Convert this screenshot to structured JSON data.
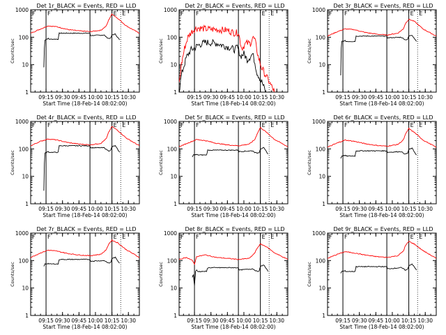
{
  "figure": {
    "xlabel": "Start Time (18-Feb-14 08:02:00)",
    "ylabel": "Counts/sec",
    "x_tick_labels": [
      "09:15",
      "09:30",
      "09:45",
      "10:00",
      "10:15",
      "10:30"
    ],
    "y_tick_labels": [
      "1",
      "10",
      "100",
      "1000"
    ],
    "marker_labels": [
      "F",
      "E"
    ],
    "colors": {
      "events": "#000000",
      "lld": "#ff0000",
      "frame": "#000000"
    }
  },
  "chart_data": [
    {
      "type": "line",
      "title": "Det 1r_BLACK = Events, RED = LLD",
      "xlabel": "Start Time (18-Feb-14 08:02:00)",
      "ylabel": "Counts/sec",
      "x_range": [
        "09:01",
        "10:40"
      ],
      "y_scale": "log",
      "ylim": [
        1,
        1000
      ],
      "vertical_lines": [
        "09:15",
        "09:55",
        "10:15"
      ],
      "dotted_lines": [
        "10:23",
        "10:40"
      ],
      "shape": "smooth",
      "series": [
        {
          "color": "#000000",
          "x": [
            "09:13",
            "09:13.5",
            "09:14",
            "09:17",
            "09:18",
            "09:26",
            "09:27",
            "09:40",
            "09:55",
            "09:55.5",
            "10:08",
            "10:10",
            "10:12",
            "10:14",
            "10:15",
            "10:18",
            "10:22"
          ],
          "y": [
            8,
            40,
            80,
            90,
            85,
            85,
            140,
            140,
            140,
            115,
            120,
            100,
            90,
            95,
            120,
            130,
            80
          ]
        },
        {
          "color": "#ff0000",
          "x": [
            "09:01",
            "09:10",
            "09:17",
            "09:25",
            "09:35",
            "09:45",
            "09:55",
            "10:05",
            "10:10",
            "10:12",
            "10:15",
            "10:20",
            "10:28",
            "10:40"
          ],
          "y": [
            140,
            200,
            260,
            240,
            190,
            170,
            160,
            180,
            260,
            420,
            700,
            500,
            260,
            140
          ]
        }
      ]
    },
    {
      "type": "line",
      "title": "Det 2r_BLACK = Events, RED = LLD",
      "xlabel": "Start Time (18-Feb-14 08:02:00)",
      "ylabel": "Counts/sec",
      "x_range": [
        "09:01",
        "10:40"
      ],
      "y_scale": "log",
      "ylim": [
        1,
        1000
      ],
      "vertical_lines": [
        "09:15",
        "09:55",
        "10:15"
      ],
      "dotted_lines": [
        "10:23",
        "10:40"
      ],
      "shape": "noisy",
      "series": [
        {
          "color": "#000000",
          "x": [
            "09:01",
            "09:03",
            "09:05",
            "09:08",
            "09:12",
            "09:15",
            "09:18",
            "09:25",
            "09:35",
            "09:45",
            "09:52",
            "09:54",
            "09:57",
            "10:00",
            "10:03",
            "10:06",
            "10:08",
            "10:10",
            "10:12",
            "10:15",
            "10:17",
            "10:20"
          ],
          "y": [
            1,
            4,
            8,
            20,
            35,
            40,
            50,
            65,
            60,
            45,
            35,
            45,
            20,
            25,
            15,
            20,
            25,
            12,
            5,
            3,
            2,
            1
          ]
        },
        {
          "color": "#ff0000",
          "x": [
            "09:01",
            "09:03",
            "09:06",
            "09:09",
            "09:12",
            "09:15",
            "09:18",
            "09:25",
            "09:35",
            "09:45",
            "09:52",
            "09:55",
            "09:58",
            "10:02",
            "10:06",
            "10:08",
            "10:10",
            "10:13",
            "10:16",
            "10:20",
            "10:24",
            "10:28"
          ],
          "y": [
            2,
            10,
            40,
            100,
            150,
            200,
            220,
            200,
            190,
            180,
            140,
            150,
            40,
            60,
            60,
            100,
            80,
            20,
            8,
            4,
            2,
            1
          ]
        }
      ]
    },
    {
      "type": "line",
      "title": "Det 3r_BLACK = Events, RED = LLD",
      "xlabel": "Start Time (18-Feb-14 08:02:00)",
      "ylabel": "Counts/sec",
      "x_range": [
        "09:01",
        "10:40"
      ],
      "y_scale": "log",
      "ylim": [
        1,
        1000
      ],
      "vertical_lines": [
        "09:15",
        "09:55",
        "10:15"
      ],
      "dotted_lines": [
        "10:23",
        "10:40"
      ],
      "shape": "smooth",
      "series": [
        {
          "color": "#000000",
          "x": [
            "09:13",
            "09:13.5",
            "09:14",
            "09:17",
            "09:18",
            "09:26",
            "09:27",
            "09:40",
            "09:55",
            "09:55.5",
            "10:08",
            "10:10",
            "10:12",
            "10:14",
            "10:15",
            "10:18",
            "10:22"
          ],
          "y": [
            4,
            40,
            70,
            75,
            70,
            70,
            110,
            110,
            110,
            95,
            100,
            90,
            80,
            85,
            110,
            120,
            70
          ]
        },
        {
          "color": "#ff0000",
          "x": [
            "09:01",
            "09:10",
            "09:17",
            "09:25",
            "09:35",
            "09:45",
            "09:55",
            "10:05",
            "10:10",
            "10:12",
            "10:15",
            "10:20",
            "10:28",
            "10:40"
          ],
          "y": [
            110,
            160,
            200,
            190,
            150,
            130,
            120,
            140,
            200,
            320,
            450,
            380,
            200,
            110
          ]
        }
      ]
    },
    {
      "type": "line",
      "title": "Det 4r_BLACK = Events, RED = LLD",
      "xlabel": "Start Time (18-Feb-14 08:02:00)",
      "ylabel": "Counts/sec",
      "x_range": [
        "09:01",
        "10:40"
      ],
      "y_scale": "log",
      "ylim": [
        1,
        1000
      ],
      "vertical_lines": [
        "09:15",
        "09:55",
        "10:15"
      ],
      "dotted_lines": [
        "10:23",
        "10:40"
      ],
      "shape": "smooth",
      "series": [
        {
          "color": "#000000",
          "x": [
            "09:13",
            "09:13.5",
            "09:14",
            "09:17",
            "09:18",
            "09:26",
            "09:27",
            "09:40",
            "09:55",
            "09:55.5",
            "10:08",
            "10:10",
            "10:12",
            "10:14",
            "10:15",
            "10:18",
            "10:22"
          ],
          "y": [
            3,
            30,
            70,
            80,
            75,
            75,
            130,
            130,
            130,
            110,
            110,
            95,
            85,
            90,
            120,
            130,
            75
          ]
        },
        {
          "color": "#ff0000",
          "x": [
            "09:01",
            "09:10",
            "09:17",
            "09:25",
            "09:35",
            "09:45",
            "09:55",
            "10:05",
            "10:10",
            "10:12",
            "10:15",
            "10:20",
            "10:28",
            "10:40"
          ],
          "y": [
            130,
            190,
            230,
            210,
            170,
            150,
            140,
            160,
            240,
            400,
            650,
            480,
            250,
            130
          ]
        }
      ]
    },
    {
      "type": "line",
      "title": "Det 5r_BLACK = Events, RED = LLD",
      "xlabel": "Start Time (18-Feb-14 08:02:00)",
      "ylabel": "Counts/sec",
      "x_range": [
        "09:01",
        "10:40"
      ],
      "y_scale": "log",
      "ylim": [
        1,
        1000
      ],
      "vertical_lines": [
        "09:15",
        "09:55",
        "10:15"
      ],
      "dotted_lines": [
        "10:23",
        "10:40"
      ],
      "shape": "smooth",
      "series": [
        {
          "color": "#000000",
          "x": [
            "09:13",
            "09:14",
            "09:17",
            "09:18",
            "09:26",
            "09:27",
            "09:40",
            "09:55",
            "09:55.5",
            "10:08",
            "10:10",
            "10:12",
            "10:14",
            "10:15",
            "10:18",
            "10:22"
          ],
          "y": [
            50,
            60,
            62,
            60,
            60,
            90,
            90,
            90,
            80,
            85,
            75,
            70,
            75,
            100,
            110,
            65
          ]
        },
        {
          "color": "#ff0000",
          "x": [
            "09:01",
            "09:10",
            "09:17",
            "09:25",
            "09:35",
            "09:45",
            "09:55",
            "10:05",
            "10:10",
            "10:12",
            "10:15",
            "10:20",
            "10:28",
            "10:40"
          ],
          "y": [
            120,
            170,
            220,
            200,
            160,
            140,
            130,
            150,
            220,
            350,
            600,
            420,
            220,
            120
          ]
        }
      ]
    },
    {
      "type": "line",
      "title": "Det 6r_BLACK = Events, RED = LLD",
      "xlabel": "Start Time (18-Feb-14 08:02:00)",
      "ylabel": "Counts/sec",
      "x_range": [
        "09:01",
        "10:40"
      ],
      "y_scale": "log",
      "ylim": [
        1,
        1000
      ],
      "vertical_lines": [
        "09:15",
        "09:55",
        "10:15"
      ],
      "dotted_lines": [
        "10:23",
        "10:40"
      ],
      "shape": "smooth",
      "series": [
        {
          "color": "#000000",
          "x": [
            "09:13",
            "09:14",
            "09:17",
            "09:18",
            "09:26",
            "09:27",
            "09:40",
            "09:55",
            "09:55.5",
            "10:08",
            "10:10",
            "10:12",
            "10:14",
            "10:15",
            "10:18",
            "10:22"
          ],
          "y": [
            45,
            55,
            58,
            55,
            55,
            85,
            85,
            85,
            75,
            80,
            70,
            65,
            70,
            95,
            105,
            60
          ]
        },
        {
          "color": "#ff0000",
          "x": [
            "09:01",
            "09:10",
            "09:17",
            "09:25",
            "09:35",
            "09:45",
            "09:55",
            "10:05",
            "10:10",
            "10:12",
            "10:15",
            "10:20",
            "10:28",
            "10:40"
          ],
          "y": [
            115,
            165,
            210,
            190,
            155,
            135,
            125,
            145,
            210,
            340,
            550,
            400,
            210,
            115
          ]
        }
      ]
    },
    {
      "type": "line",
      "title": "Det 7r_BLACK = Events, RED = LLD",
      "xlabel": "Start Time (18-Feb-14 08:02:00)",
      "ylabel": "Counts/sec",
      "x_range": [
        "09:01",
        "10:40"
      ],
      "y_scale": "log",
      "ylim": [
        1,
        1000
      ],
      "vertical_lines": [
        "09:15",
        "09:55",
        "10:15"
      ],
      "dotted_lines": [
        "10:23",
        "10:40"
      ],
      "shape": "smooth",
      "series": [
        {
          "color": "#000000",
          "x": [
            "09:13",
            "09:14",
            "09:17",
            "09:18",
            "09:26",
            "09:27",
            "09:40",
            "09:55",
            "09:55.5",
            "10:08",
            "10:10",
            "10:12",
            "10:14",
            "10:15",
            "10:18",
            "10:22"
          ],
          "y": [
            60,
            75,
            78,
            75,
            75,
            110,
            110,
            110,
            95,
            100,
            90,
            80,
            85,
            120,
            130,
            80
          ]
        },
        {
          "color": "#ff0000",
          "x": [
            "09:01",
            "09:10",
            "09:17",
            "09:25",
            "09:35",
            "09:45",
            "09:55",
            "10:05",
            "10:10",
            "10:12",
            "10:15",
            "10:20",
            "10:28",
            "10:40"
          ],
          "y": [
            130,
            190,
            240,
            220,
            180,
            160,
            150,
            170,
            250,
            400,
            550,
            450,
            250,
            130
          ]
        }
      ]
    },
    {
      "type": "line",
      "title": "Det 8r_BLACK = Events, RED = LLD",
      "xlabel": "Start Time (18-Feb-14 08:02:00)",
      "ylabel": "Counts/sec",
      "x_range": [
        "09:01",
        "10:40"
      ],
      "y_scale": "log",
      "ylim": [
        1,
        1000
      ],
      "vertical_lines": [
        "09:15",
        "09:55",
        "10:15"
      ],
      "dotted_lines": [
        "10:23",
        "10:40"
      ],
      "shape": "dip",
      "series": [
        {
          "color": "#000000",
          "x": [
            "09:13",
            "09:14",
            "09:15",
            "09:16",
            "09:17",
            "09:18",
            "09:26",
            "09:27",
            "09:40",
            "09:55",
            "09:55.5",
            "10:08",
            "10:10",
            "10:12",
            "10:14",
            "10:15",
            "10:18",
            "10:22"
          ],
          "y": [
            25,
            30,
            12,
            40,
            45,
            40,
            40,
            55,
            55,
            55,
            45,
            50,
            45,
            40,
            42,
            60,
            70,
            40
          ]
        },
        {
          "color": "#ff0000",
          "x": [
            "09:01",
            "09:08",
            "09:13",
            "09:15",
            "09:17",
            "09:25",
            "09:35",
            "09:45",
            "09:55",
            "10:05",
            "10:10",
            "10:12",
            "10:15",
            "10:20",
            "10:28",
            "10:40"
          ],
          "y": [
            110,
            130,
            100,
            75,
            140,
            160,
            130,
            120,
            110,
            120,
            190,
            280,
            400,
            330,
            190,
            110
          ]
        }
      ]
    },
    {
      "type": "line",
      "title": "Det 9r_BLACK = Events, RED = LLD",
      "xlabel": "Start Time (18-Feb-14 08:02:00)",
      "ylabel": "Counts/sec",
      "x_range": [
        "09:01",
        "10:40"
      ],
      "y_scale": "log",
      "ylim": [
        1,
        1000
      ],
      "vertical_lines": [
        "09:15",
        "09:55",
        "10:15"
      ],
      "dotted_lines": [
        "10:23",
        "10:40"
      ],
      "shape": "smooth",
      "series": [
        {
          "color": "#000000",
          "x": [
            "09:13",
            "09:14",
            "09:17",
            "09:18",
            "09:26",
            "09:27",
            "09:40",
            "09:55",
            "09:55.5",
            "10:08",
            "10:10",
            "10:12",
            "10:14",
            "10:15",
            "10:18",
            "10:22"
          ],
          "y": [
            35,
            40,
            42,
            40,
            40,
            60,
            60,
            60,
            50,
            55,
            50,
            45,
            48,
            65,
            75,
            45
          ]
        },
        {
          "color": "#ff0000",
          "x": [
            "09:01",
            "09:10",
            "09:17",
            "09:25",
            "09:35",
            "09:45",
            "09:55",
            "10:05",
            "10:10",
            "10:12",
            "10:15",
            "10:20",
            "10:28",
            "10:40"
          ],
          "y": [
            120,
            170,
            210,
            190,
            160,
            140,
            130,
            150,
            220,
            350,
            500,
            400,
            230,
            120
          ]
        }
      ]
    }
  ]
}
